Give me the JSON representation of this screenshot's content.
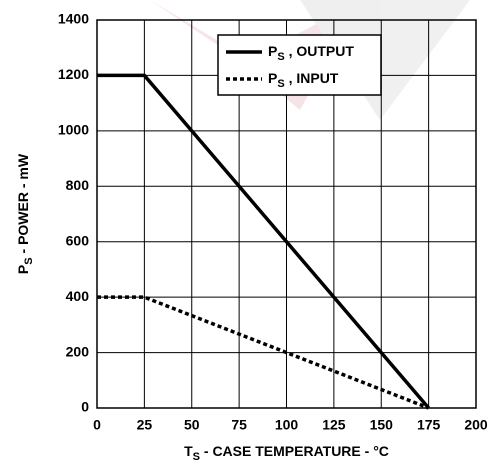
{
  "chart_data": {
    "type": "line",
    "xlabel": [
      "T",
      "S",
      " - CASE TEMPERATURE - °C"
    ],
    "ylabel": [
      "P",
      "S",
      " - POWER - mW"
    ],
    "x": [
      0,
      25,
      175
    ],
    "series": [
      {
        "name": [
          "P",
          "S",
          " , OUTPUT"
        ],
        "color": "#000000",
        "style": "solid",
        "values": [
          1200,
          1200,
          0
        ]
      },
      {
        "name": [
          "P",
          "S",
          " , INPUT"
        ],
        "color": "#000000",
        "style": "dotted",
        "values": [
          400,
          400,
          0
        ]
      }
    ],
    "xlim": [
      0,
      200
    ],
    "xticks": [
      0,
      25,
      50,
      75,
      100,
      125,
      150,
      175,
      200
    ],
    "ylim": [
      0,
      1400
    ],
    "yticks": [
      0,
      200,
      400,
      600,
      800,
      1000,
      1200,
      1400
    ],
    "grid": true,
    "legend": "upper center"
  }
}
